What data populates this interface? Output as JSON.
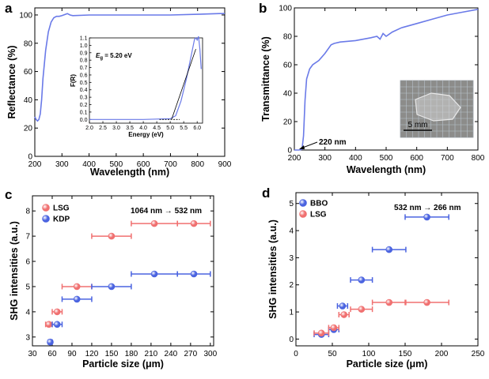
{
  "chart_data": [
    {
      "panel": "a",
      "type": "line",
      "xlabel": "Wavelength (nm)",
      "ylabel": "Reflectance (%)",
      "xlim": [
        200,
        900
      ],
      "ylim": [
        0,
        105
      ],
      "xticks": [
        200,
        300,
        400,
        500,
        600,
        700,
        800,
        900
      ],
      "yticks": [
        0,
        20,
        40,
        60,
        80,
        100
      ],
      "color": "#6a7ae8",
      "x": [
        200,
        205,
        210,
        215,
        220,
        225,
        230,
        240,
        250,
        260,
        270,
        280,
        290,
        300,
        320,
        330,
        340,
        400,
        500,
        600,
        700,
        800,
        880,
        900
      ],
      "y": [
        28,
        26,
        25,
        26,
        30,
        40,
        55,
        75,
        88,
        95,
        98,
        99,
        99,
        99.5,
        101,
        100,
        99.5,
        100,
        100,
        100,
        100,
        100.5,
        101,
        101
      ],
      "inset": {
        "type": "line",
        "xlabel": "Energy (eV)",
        "ylabel": "F(R)",
        "xlim": [
          2.0,
          6.2
        ],
        "ylim": [
          -0.05,
          1.1
        ],
        "xticks": [
          "2.0",
          "2.5",
          "3.0",
          "3.5",
          "4.0",
          "4.5",
          "5.0",
          "5.5",
          "6.0"
        ],
        "yticks": [
          "0.0",
          "0.1",
          "0.2",
          "0.3",
          "0.4",
          "0.5",
          "0.6",
          "0.7",
          "0.8",
          "0.9",
          "1.0",
          "1.1"
        ],
        "annotation_prefix": "E",
        "annotation_sub": "g",
        "annotation_suffix": " = 5.20 eV",
        "x": [
          2.0,
          3.0,
          4.0,
          4.5,
          5.0,
          5.2,
          5.4,
          5.6,
          5.8,
          5.9,
          5.95,
          6.0,
          6.05,
          6.1,
          6.15
        ],
        "y": [
          0.0,
          0.0,
          0.0,
          0.005,
          0.01,
          0.05,
          0.25,
          0.55,
          0.9,
          1.08,
          1.1,
          1.07,
          1.12,
          0.95,
          0.68
        ]
      }
    },
    {
      "panel": "b",
      "type": "line",
      "xlabel": "Wavelength (nm)",
      "ylabel": "Transmittance (%)",
      "xlim": [
        200,
        800
      ],
      "ylim": [
        0,
        100
      ],
      "xticks": [
        200,
        300,
        400,
        500,
        600,
        700,
        800
      ],
      "yticks": [
        0,
        20,
        40,
        60,
        80,
        100
      ],
      "color": "#6a7ae8",
      "annotation": "220 nm",
      "scale_bar": "5 mm",
      "x": [
        200,
        215,
        225,
        230,
        235,
        240,
        250,
        260,
        280,
        300,
        320,
        330,
        350,
        400,
        450,
        470,
        480,
        490,
        500,
        520,
        550,
        600,
        650,
        700,
        750,
        800
      ],
      "y": [
        0,
        0,
        0.5,
        10,
        35,
        50,
        57,
        60,
        63,
        68,
        74,
        75,
        76,
        77,
        79,
        80,
        78,
        82,
        80,
        83,
        86,
        89,
        92,
        95,
        97,
        99
      ]
    },
    {
      "panel": "c",
      "type": "scatter",
      "xlabel": "Particle size (μm)",
      "ylabel": "SHG intensities (a.u.)",
      "xlim": [
        30,
        305
      ],
      "ylim": [
        2.65,
        8.6
      ],
      "xticks": [
        30,
        60,
        90,
        120,
        150,
        180,
        210,
        240,
        270,
        300
      ],
      "yticks": [
        3,
        4,
        5,
        6,
        7,
        8
      ],
      "annotation": "1064 nm → 532 nm",
      "legend": [
        "LSG",
        "KDP"
      ],
      "series": [
        {
          "name": "LSG",
          "color": "#f07070",
          "x": [
            55,
            67.5,
            97.5,
            150,
            215,
            275
          ],
          "xerr": [
            5,
            7.5,
            22.5,
            30,
            35,
            25
          ],
          "y": [
            3.5,
            4.0,
            5.0,
            7.0,
            7.5,
            7.5
          ]
        },
        {
          "name": "KDP",
          "color": "#4a63e0",
          "x": [
            57,
            67.5,
            97.5,
            150,
            215,
            275
          ],
          "xerr": [
            3,
            7.5,
            22.5,
            30,
            35,
            25
          ],
          "y": [
            2.8,
            3.5,
            4.5,
            5.0,
            5.5,
            5.5
          ]
        }
      ]
    },
    {
      "panel": "d",
      "type": "scatter",
      "xlabel": "Particle size (μm)",
      "ylabel": "SHG intensities (a.u.)",
      "xlim": [
        0,
        250
      ],
      "ylim": [
        -0.25,
        5.4
      ],
      "xticks": [
        0,
        50,
        100,
        150,
        200,
        250
      ],
      "yticks": [
        0,
        1,
        2,
        3,
        4,
        5
      ],
      "annotation": "532 nm → 266 nm",
      "legend": [
        "BBO",
        "LSG"
      ],
      "series": [
        {
          "name": "BBO",
          "color": "#4a63e0",
          "x": [
            35,
            52,
            64,
            90,
            128,
            180
          ],
          "xerr": [
            10,
            7,
            7,
            15,
            23,
            30
          ],
          "y": [
            0.17,
            0.35,
            1.22,
            2.18,
            3.3,
            4.5
          ]
        },
        {
          "name": "LSG",
          "color": "#f07070",
          "x": [
            35,
            52,
            66,
            90,
            128,
            180
          ],
          "xerr": [
            10,
            7,
            7,
            15,
            23,
            30
          ],
          "y": [
            0.22,
            0.42,
            0.9,
            1.1,
            1.35,
            1.35
          ]
        }
      ]
    }
  ]
}
